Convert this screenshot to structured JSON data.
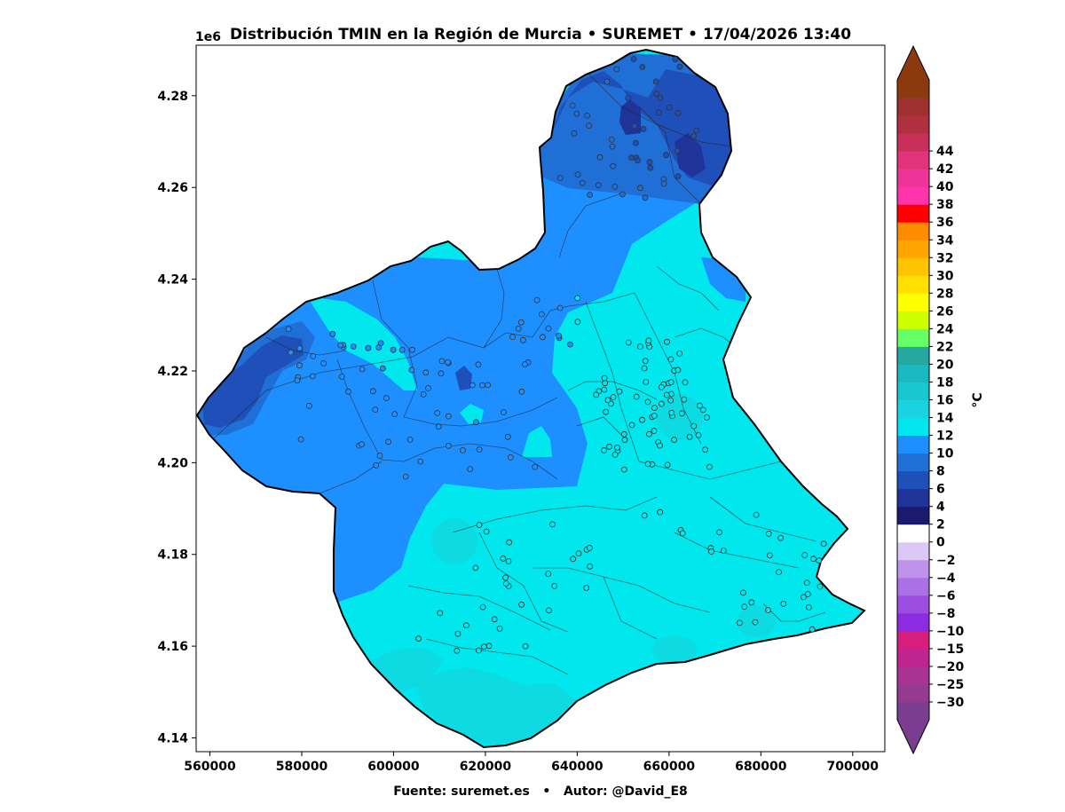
{
  "chart_data": {
    "type": "heatmap",
    "title": "Distribución TMIN en la Región de Murcia • SUREMET • 17/04/2026 13:40",
    "x_ticks": [
      "560000",
      "580000",
      "600000",
      "620000",
      "640000",
      "660000",
      "680000",
      "700000"
    ],
    "x_tick_values": [
      560000,
      580000,
      600000,
      620000,
      640000,
      660000,
      680000,
      700000
    ],
    "y_ticks": [
      "4.14",
      "4.16",
      "4.18",
      "4.20",
      "4.22",
      "4.24",
      "4.26",
      "4.28"
    ],
    "y_tick_values": [
      4140000,
      4160000,
      4180000,
      4200000,
      4220000,
      4240000,
      4260000,
      4280000
    ],
    "y_offset_label": "1e6",
    "xlim": [
      557000,
      707000
    ],
    "ylim": [
      4137000,
      4291000
    ],
    "footer": "Fuente: suremet.es   •   Autor: @David_E8",
    "colorbar": {
      "unit": "°C",
      "tick_labels": [
        "−30",
        "−25",
        "−20",
        "−15",
        "−10",
        "−8",
        "−6",
        "−4",
        "−2",
        "0",
        "2",
        "4",
        "6",
        "8",
        "10",
        "12",
        "14",
        "16",
        "18",
        "20",
        "22",
        "24",
        "26",
        "28",
        "30",
        "32",
        "34",
        "36",
        "38",
        "40",
        "42",
        "44"
      ],
      "level_colors": [
        "#7a3d8f",
        "#943a8f",
        "#a83392",
        "#c0248f",
        "#d81e7c",
        "#8b2be2",
        "#9b4de0",
        "#aa70e6",
        "#bf92ec",
        "#dcc8f4",
        "#ffffff",
        "#1a1a6e",
        "#1f3399",
        "#1f4fb8",
        "#1f6fd6",
        "#1e8fff",
        "#00e5ee",
        "#1ad3e0",
        "#18c7cf",
        "#1ab8c0",
        "#24a89f",
        "#66ff66",
        "#ccff00",
        "#ffff00",
        "#ffe000",
        "#ffc400",
        "#ffa500",
        "#ff8c00",
        "#ff0000",
        "#ff33aa",
        "#ee3399",
        "#e0337a",
        "#c8305a",
        "#b03040",
        "#a03030",
        "#8b3a10"
      ],
      "over_color": "#8b3a10",
      "under_color": "#7a3d8f"
    },
    "colors": {
      "cold_0_2": "#1a1a6e",
      "band_2_4": "#1f3399",
      "band_4_6": "#1f4fb8",
      "band_6_8": "#1f6fd6",
      "band_8_10": "#1e8fff",
      "band_10_12": "#00e8ee",
      "band_12_14": "#13d6dc",
      "station_edge": "#333333"
    }
  }
}
